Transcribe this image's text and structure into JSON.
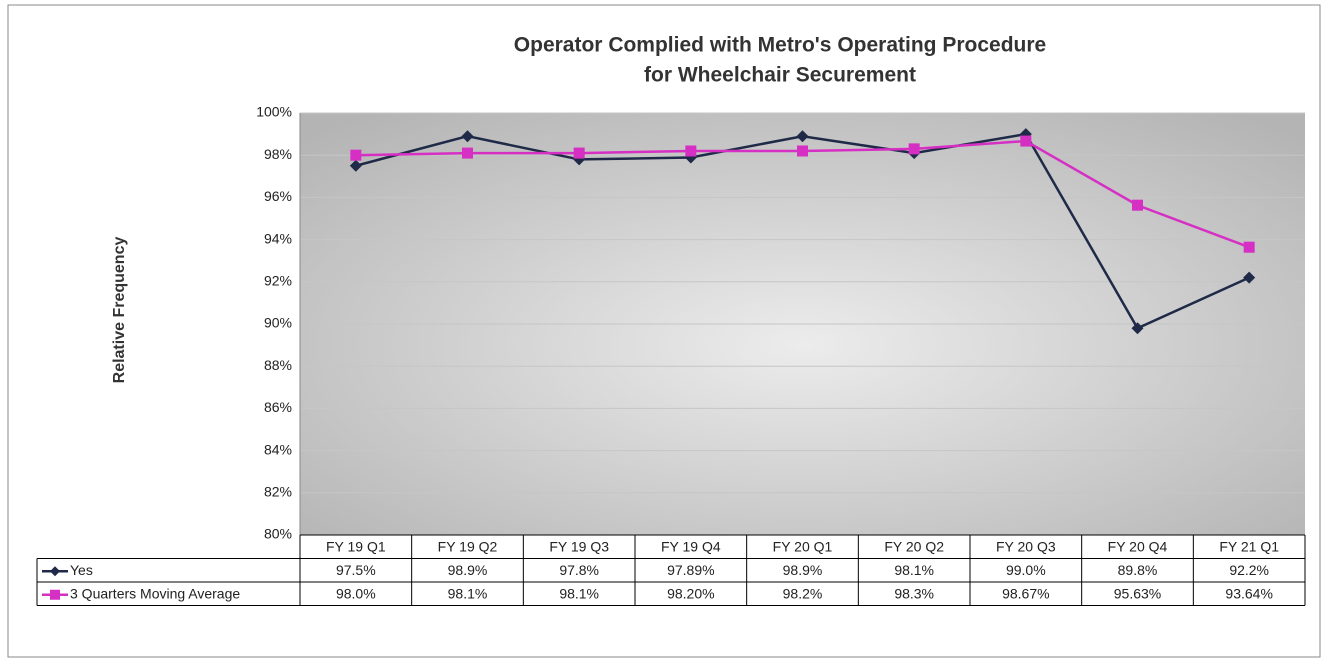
{
  "chart_data": {
    "type": "line",
    "title": [
      "Operator Complied with Metro's Operating Procedure",
      "for Wheelchair Securement"
    ],
    "y_label": "Relative Frequency",
    "categories": [
      "FY 19 Q1",
      "FY 19 Q2",
      "FY 19 Q3",
      "FY 19 Q4",
      "FY 20 Q1",
      "FY 20 Q2",
      "FY 20 Q3",
      "FY 20 Q4",
      "FY 21 Q1"
    ],
    "series": [
      {
        "name": "Yes",
        "color": "#1f2a48",
        "marker": "diamond",
        "values": [
          97.5,
          98.9,
          97.8,
          97.89,
          98.9,
          98.1,
          99.0,
          89.8,
          92.2
        ],
        "value_labels": [
          "97.5%",
          "98.9%",
          "97.8%",
          "97.89%",
          "98.9%",
          "98.1%",
          "99.0%",
          "89.8%",
          "92.2%"
        ]
      },
      {
        "name": "3 Quarters Moving Average",
        "color": "#d62fc4",
        "marker": "square",
        "values": [
          98.0,
          98.1,
          98.1,
          98.2,
          98.2,
          98.3,
          98.67,
          95.63,
          93.64
        ],
        "value_labels": [
          "98.0%",
          "98.1%",
          "98.1%",
          "98.20%",
          "98.2%",
          "98.3%",
          "98.67%",
          "95.63%",
          "93.64%"
        ]
      }
    ],
    "ylim": [
      80,
      100
    ],
    "yticks": [
      {
        "value": 80,
        "label": "80%"
      },
      {
        "value": 82,
        "label": "82%"
      },
      {
        "value": 84,
        "label": "84%"
      },
      {
        "value": 86,
        "label": "86%"
      },
      {
        "value": 88,
        "label": "88%"
      },
      {
        "value": 90,
        "label": "90%"
      },
      {
        "value": 92,
        "label": "92%"
      },
      {
        "value": 94,
        "label": "94%"
      },
      {
        "value": 96,
        "label": "96%"
      },
      {
        "value": 98,
        "label": "98%"
      },
      {
        "value": 100,
        "label": "100%"
      }
    ],
    "grid": true
  }
}
